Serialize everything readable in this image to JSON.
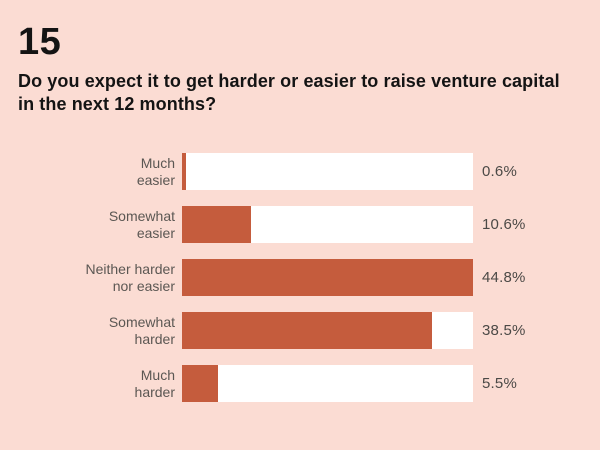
{
  "header": {
    "number": "15",
    "question_lines": [
      "Do you expect it to get harder or easier to raise venture capital",
      "in the next 12 months?"
    ]
  },
  "chart_data": {
    "type": "bar",
    "orientation": "horizontal",
    "title": "Do you expect it to get harder or easier to raise venture capital in the next 12 months?",
    "categories": [
      "Much easier",
      "Somewhat easier",
      "Neither harder nor easier",
      "Somewhat harder",
      "Much harder"
    ],
    "category_lines": [
      [
        "Much",
        "easier"
      ],
      [
        "Somewhat",
        "easier"
      ],
      [
        "Neither harder",
        "nor easier"
      ],
      [
        "Somewhat",
        "harder"
      ],
      [
        "Much",
        "harder"
      ]
    ],
    "values": [
      0.6,
      10.6,
      44.8,
      38.5,
      5.5
    ],
    "value_labels": [
      "0.6%",
      "10.6%",
      "44.8%",
      "38.5%",
      "5.5%"
    ],
    "unit": "%",
    "xlim": [
      0,
      44.8
    ],
    "grid": false,
    "legend": false,
    "axis_labels_shown": false
  },
  "colors": {
    "background": "#fbdcd3",
    "bar": "#c55c3d",
    "track": "#ffffff",
    "title": "#141414",
    "label": "#5b5753",
    "value": "#4b4946"
  }
}
